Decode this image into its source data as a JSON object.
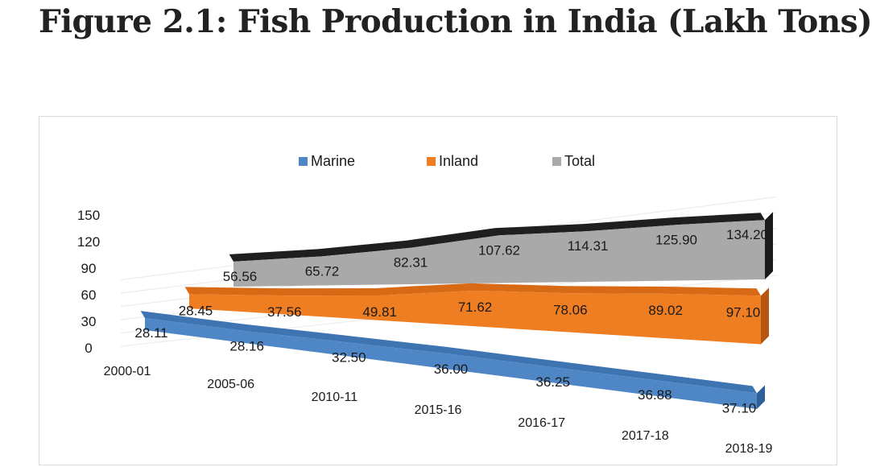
{
  "title": "Figure 2.1: Fish Production in India (Lakh Tons)",
  "chart_data": {
    "type": "area",
    "categories": [
      "2000-01",
      "2005-06",
      "2010-11",
      "2015-16",
      "2016-17",
      "2017-18",
      "2018-19"
    ],
    "series": [
      {
        "name": "Marine",
        "values": [
          28.11,
          28.16,
          32.5,
          36.0,
          36.25,
          36.88,
          37.1
        ],
        "labels": [
          "28.11",
          "28.16",
          "32.50",
          "36.00",
          "36.25",
          "36.88",
          "37.10"
        ],
        "color": "#4f87c6"
      },
      {
        "name": "Inland",
        "values": [
          28.45,
          37.56,
          49.81,
          71.62,
          78.06,
          89.02,
          97.1
        ],
        "labels": [
          "28.45",
          "37.56",
          "49.81",
          "71.62",
          "78.06",
          "89.02",
          "97.10"
        ],
        "color": "#ef7d22"
      },
      {
        "name": "Total",
        "values": [
          56.56,
          65.72,
          82.31,
          107.62,
          114.31,
          125.9,
          134.2
        ],
        "labels": [
          "56.56",
          "65.72",
          "82.31",
          "107.62",
          "114.31",
          "125.90",
          "134.20"
        ],
        "color": "#a9a9a9"
      }
    ],
    "yticks": [
      "0",
      "30",
      "60",
      "90",
      "120",
      "150"
    ],
    "ylim": [
      0,
      150
    ],
    "legend": "top-center",
    "grid": true,
    "style": "3d-area"
  }
}
